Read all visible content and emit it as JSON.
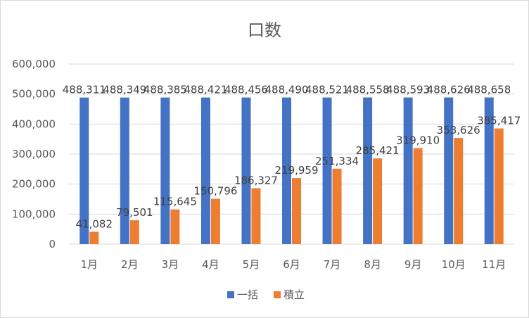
{
  "chart_data": {
    "type": "bar",
    "title": "口数",
    "xlabel": "",
    "ylabel": "",
    "ylim": [
      0,
      600000
    ],
    "yticks": [
      0,
      100000,
      200000,
      300000,
      400000,
      500000,
      600000
    ],
    "ytick_labels": [
      "0",
      "100,000",
      "200,000",
      "300,000",
      "400,000",
      "500,000",
      "600,000"
    ],
    "categories": [
      "1月",
      "2月",
      "3月",
      "4月",
      "5月",
      "6月",
      "7月",
      "8月",
      "9月",
      "10月",
      "11月"
    ],
    "series": [
      {
        "name": "一括",
        "color": "#4472C4",
        "values": [
          488311,
          488349,
          488385,
          488421,
          488456,
          488490,
          488521,
          488558,
          488593,
          488626,
          488658
        ],
        "labels": [
          "488,311",
          "488,349",
          "488,385",
          "488,421",
          "488,456",
          "488,490",
          "488,521",
          "488,558",
          "488,593",
          "488,626",
          "488,658"
        ]
      },
      {
        "name": "積立",
        "color": "#ED7D31",
        "values": [
          41082,
          79501,
          115645,
          150796,
          186327,
          219959,
          251334,
          285421,
          319910,
          353626,
          385417
        ],
        "labels": [
          "41,082",
          "79,501",
          "115,645",
          "150,796",
          "186,327",
          "219,959",
          "251,334",
          "285,421",
          "319,910",
          "353,626",
          "385,417"
        ]
      }
    ],
    "grid": true,
    "legend_position": "bottom"
  }
}
